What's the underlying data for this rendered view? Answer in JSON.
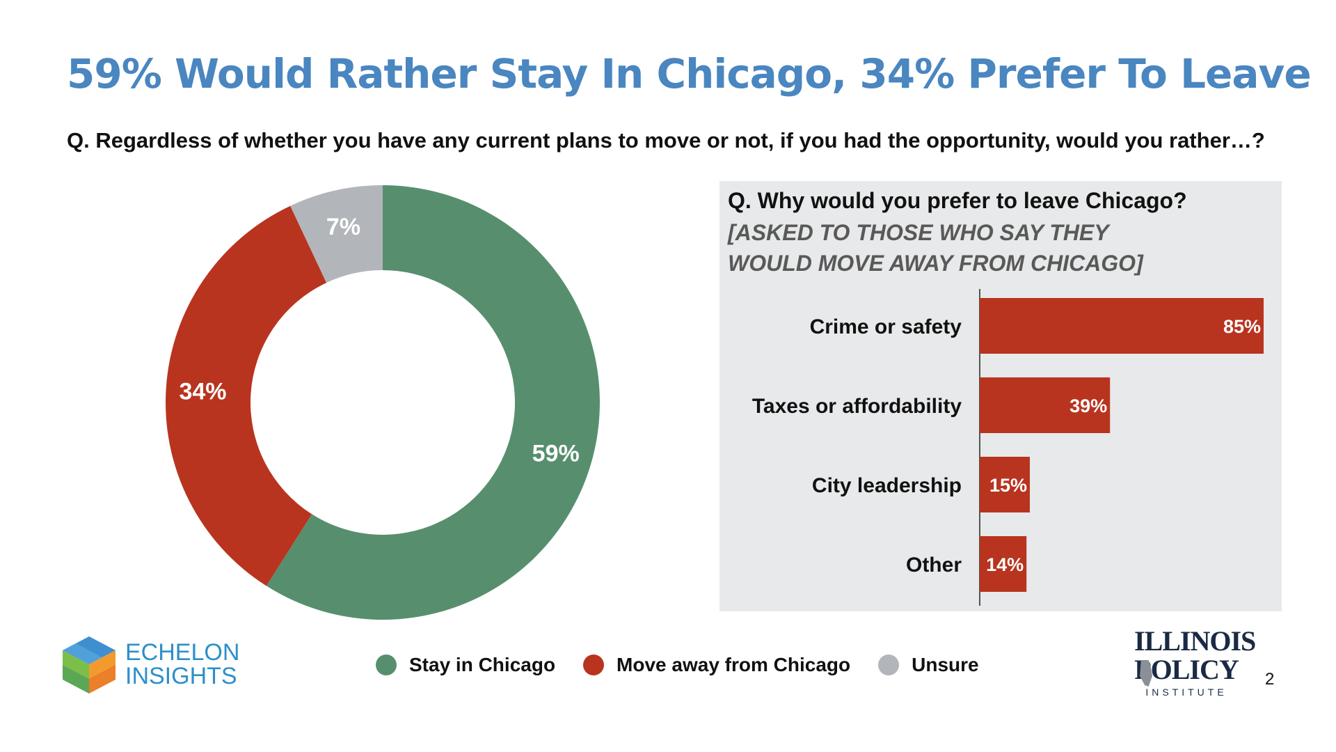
{
  "title": "59% Would Rather Stay In Chicago, 34% Prefer To Leave",
  "question": "Q. Regardless of whether you have any current plans to move or not, if you had the opportunity, would you rather…?",
  "panel": {
    "question": "Q. Why would you prefer to leave Chicago?",
    "note": "[ASKED TO THOSE WHO SAY THEY WOULD MOVE AWAY FROM CHICAGO]"
  },
  "legend": [
    {
      "label": "Stay in Chicago",
      "color": "#578f6e"
    },
    {
      "label": "Move away from Chicago",
      "color": "#b8341f"
    },
    {
      "label": "Unsure",
      "color": "#b2b5ba"
    }
  ],
  "logos": {
    "echelon_line1": "ECHELON",
    "echelon_line2": "INSIGHTS",
    "ipi_line1": "ILLINOIS",
    "ipi_line2": "POLICY",
    "ipi_line3": "INSTITUTE"
  },
  "page_number": "2",
  "chart_data": [
    {
      "type": "pie",
      "subtype": "donut",
      "categories": [
        "Stay in Chicago",
        "Move away from Chicago",
        "Unsure"
      ],
      "values": [
        59,
        34,
        7
      ],
      "labels": [
        "59%",
        "34%",
        "7%"
      ],
      "colors": [
        "#578f6e",
        "#b8341f",
        "#b2b5ba"
      ],
      "start": "12 o'clock, clockwise",
      "legend_position": "bottom"
    },
    {
      "type": "bar",
      "orientation": "horizontal",
      "categories": [
        "Crime or safety",
        "Taxes or affordability",
        "City leadership",
        "Other"
      ],
      "values": [
        85,
        39,
        15,
        14
      ],
      "labels": [
        "85%",
        "39%",
        "15%",
        "14%"
      ],
      "color": "#b8341f",
      "xlim": [
        0,
        85
      ]
    }
  ]
}
